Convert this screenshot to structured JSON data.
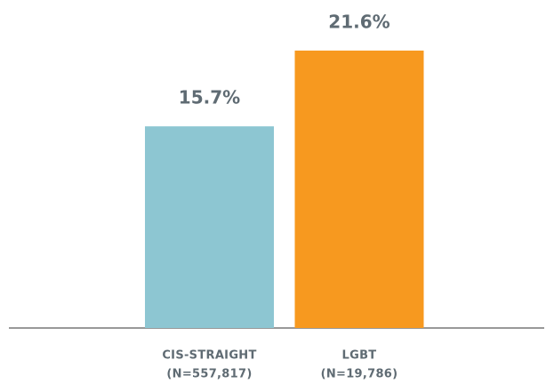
{
  "chart_data": {
    "type": "bar",
    "categories": [
      "CIS-STRAIGHT",
      "LGBT"
    ],
    "sample_sizes": [
      "(N=557,817)",
      "(N=19,786)"
    ],
    "values": [
      15.7,
      21.6
    ],
    "value_labels": [
      "15.7%",
      "21.6%"
    ],
    "colors": [
      "#8dc6d2",
      "#f7991f"
    ]
  }
}
